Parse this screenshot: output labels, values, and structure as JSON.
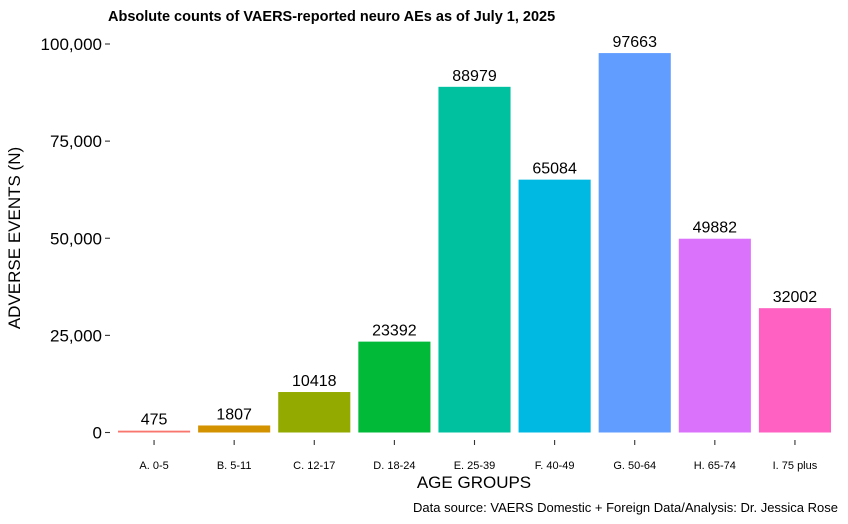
{
  "chart_data": {
    "type": "bar",
    "title": "Absolute counts of VAERS-reported neuro AEs as of July 1, 2025",
    "xlabel": "AGE GROUPS",
    "ylabel": "ADVERSE EVENTS (N)",
    "caption": "Data source: VAERS Domestic + Foreign Data/Analysis: Dr. Jessica Rose",
    "ylim": [
      0,
      100000
    ],
    "yticks": [
      0,
      25000,
      50000,
      75000,
      100000
    ],
    "ytick_labels": [
      "0",
      "25,000",
      "50,000",
      "75,000",
      "100,000"
    ],
    "categories": [
      "A. 0-5",
      "B. 5-11",
      "C. 12-17",
      "D. 18-24",
      "E. 25-39",
      "F. 40-49",
      "G. 50-64",
      "H. 65-74",
      "I. 75 plus"
    ],
    "values": [
      475,
      1807,
      10418,
      23392,
      88979,
      65084,
      97663,
      49882,
      32002
    ],
    "value_labels": [
      "475",
      "1807",
      "10418",
      "23392",
      "88979",
      "65084",
      "97663",
      "49882",
      "32002"
    ],
    "colors": [
      "#F8766D",
      "#D39200",
      "#93AA00",
      "#00BA38",
      "#00C19F",
      "#00B9E3",
      "#619CFF",
      "#DB72FB",
      "#FF61C3"
    ],
    "grid": false,
    "legend": "none"
  }
}
